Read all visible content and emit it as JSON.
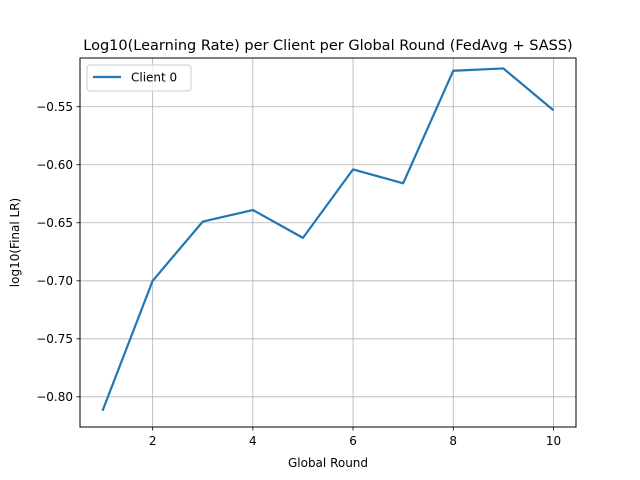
{
  "chart_data": {
    "type": "line",
    "title": "Log10(Learning Rate) per Client per Global Round (FedAvg + SASS)",
    "xlabel": "Global Round",
    "ylabel": "log10(Final LR)",
    "xlim": [
      0.55,
      10.45
    ],
    "ylim": [
      -0.826,
      -0.508
    ],
    "xticks": [
      2,
      4,
      6,
      8,
      10
    ],
    "xtick_labels": [
      "2",
      "4",
      "6",
      "8",
      "10"
    ],
    "yticks": [
      -0.8,
      -0.75,
      -0.7,
      -0.65,
      -0.6,
      -0.55
    ],
    "ytick_labels": [
      "−0.80",
      "−0.75",
      "−0.70",
      "−0.65",
      "−0.60",
      "−0.55"
    ],
    "grid": true,
    "legend_position": "upper-left",
    "series": [
      {
        "name": "Client 0",
        "color": "#1f77b4",
        "x": [
          1,
          2,
          3,
          4,
          5,
          6,
          7,
          8,
          9,
          10
        ],
        "values": [
          -0.812,
          -0.7,
          -0.649,
          -0.639,
          -0.663,
          -0.604,
          -0.616,
          -0.519,
          -0.517,
          -0.553
        ]
      }
    ]
  }
}
